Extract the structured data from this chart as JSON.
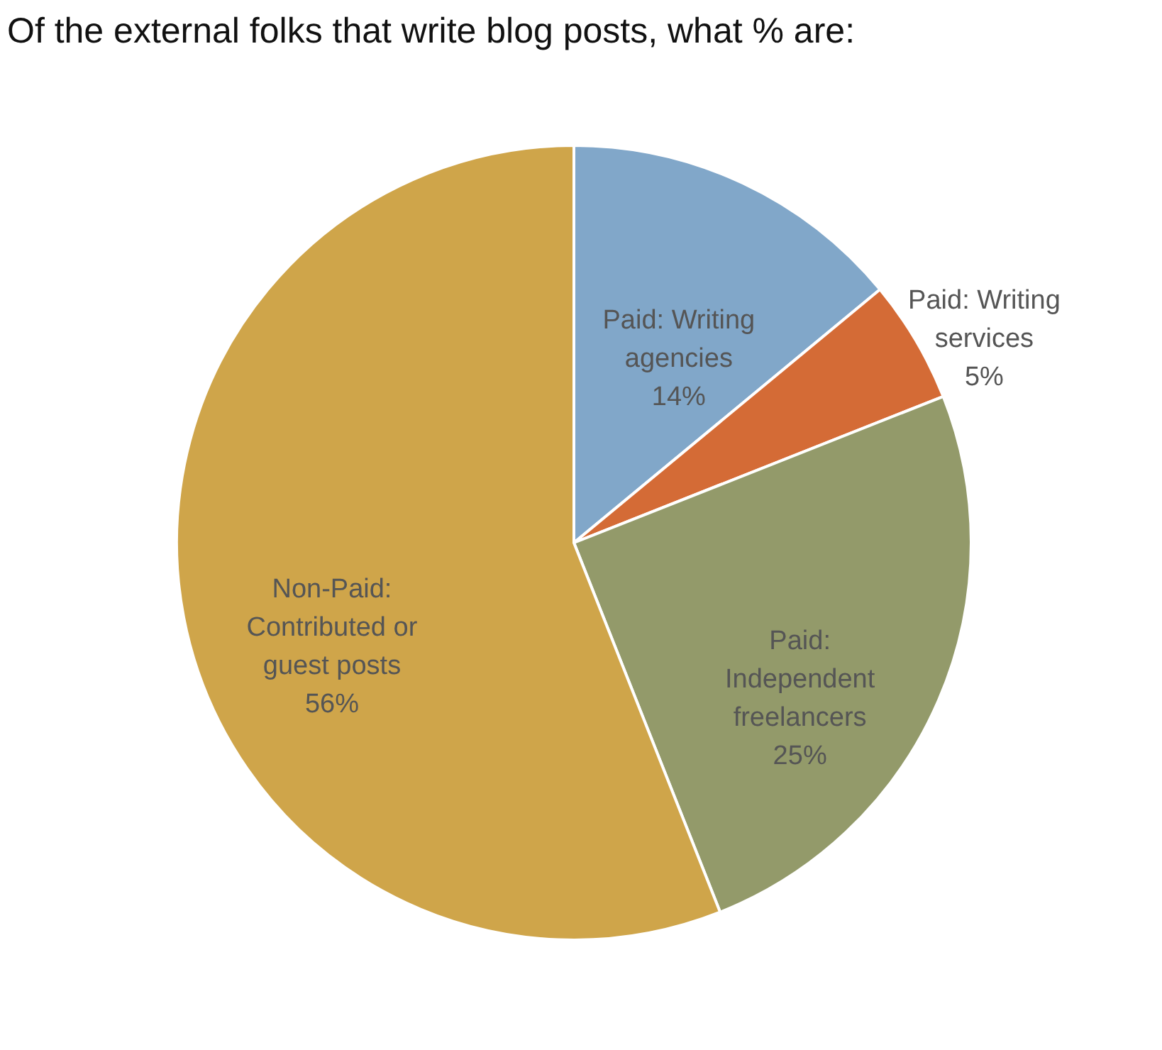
{
  "chart_data": {
    "type": "pie",
    "title": "Of the external folks that write blog posts, what % are:",
    "categories": [
      "Paid: Writing agencies",
      "Paid: Writing services",
      "Paid: Independent freelancers",
      "Non-Paid: Contributed or guest posts"
    ],
    "values": [
      14,
      5,
      25,
      56
    ],
    "value_labels": [
      "14%",
      "5%",
      "25%",
      "56%"
    ],
    "colors": [
      "#81a7c9",
      "#d46b36",
      "#939a6a",
      "#cfa54a"
    ],
    "legend": false
  }
}
